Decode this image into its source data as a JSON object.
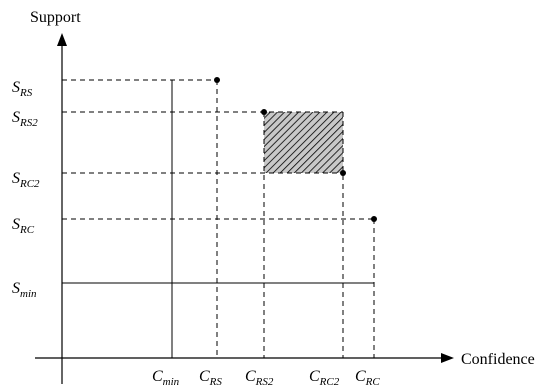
{
  "axes": {
    "y_title": "Support",
    "x_title": "Confidence"
  },
  "y_ticks": [
    {
      "base": "S",
      "sub": "RS"
    },
    {
      "base": "S",
      "sub": "RS2"
    },
    {
      "base": "S",
      "sub": "RC2"
    },
    {
      "base": "S",
      "sub": "RC"
    },
    {
      "base": "S",
      "sub": "min"
    }
  ],
  "x_ticks": [
    {
      "base": "C",
      "sub": "min"
    },
    {
      "base": "C",
      "sub": "RS"
    },
    {
      "base": "C",
      "sub": "RS2"
    },
    {
      "base": "C",
      "sub": "RC2"
    },
    {
      "base": "C",
      "sub": "RC"
    }
  ],
  "colors": {
    "line": "#000000",
    "hatch_fill": "#c8c8c8"
  }
}
